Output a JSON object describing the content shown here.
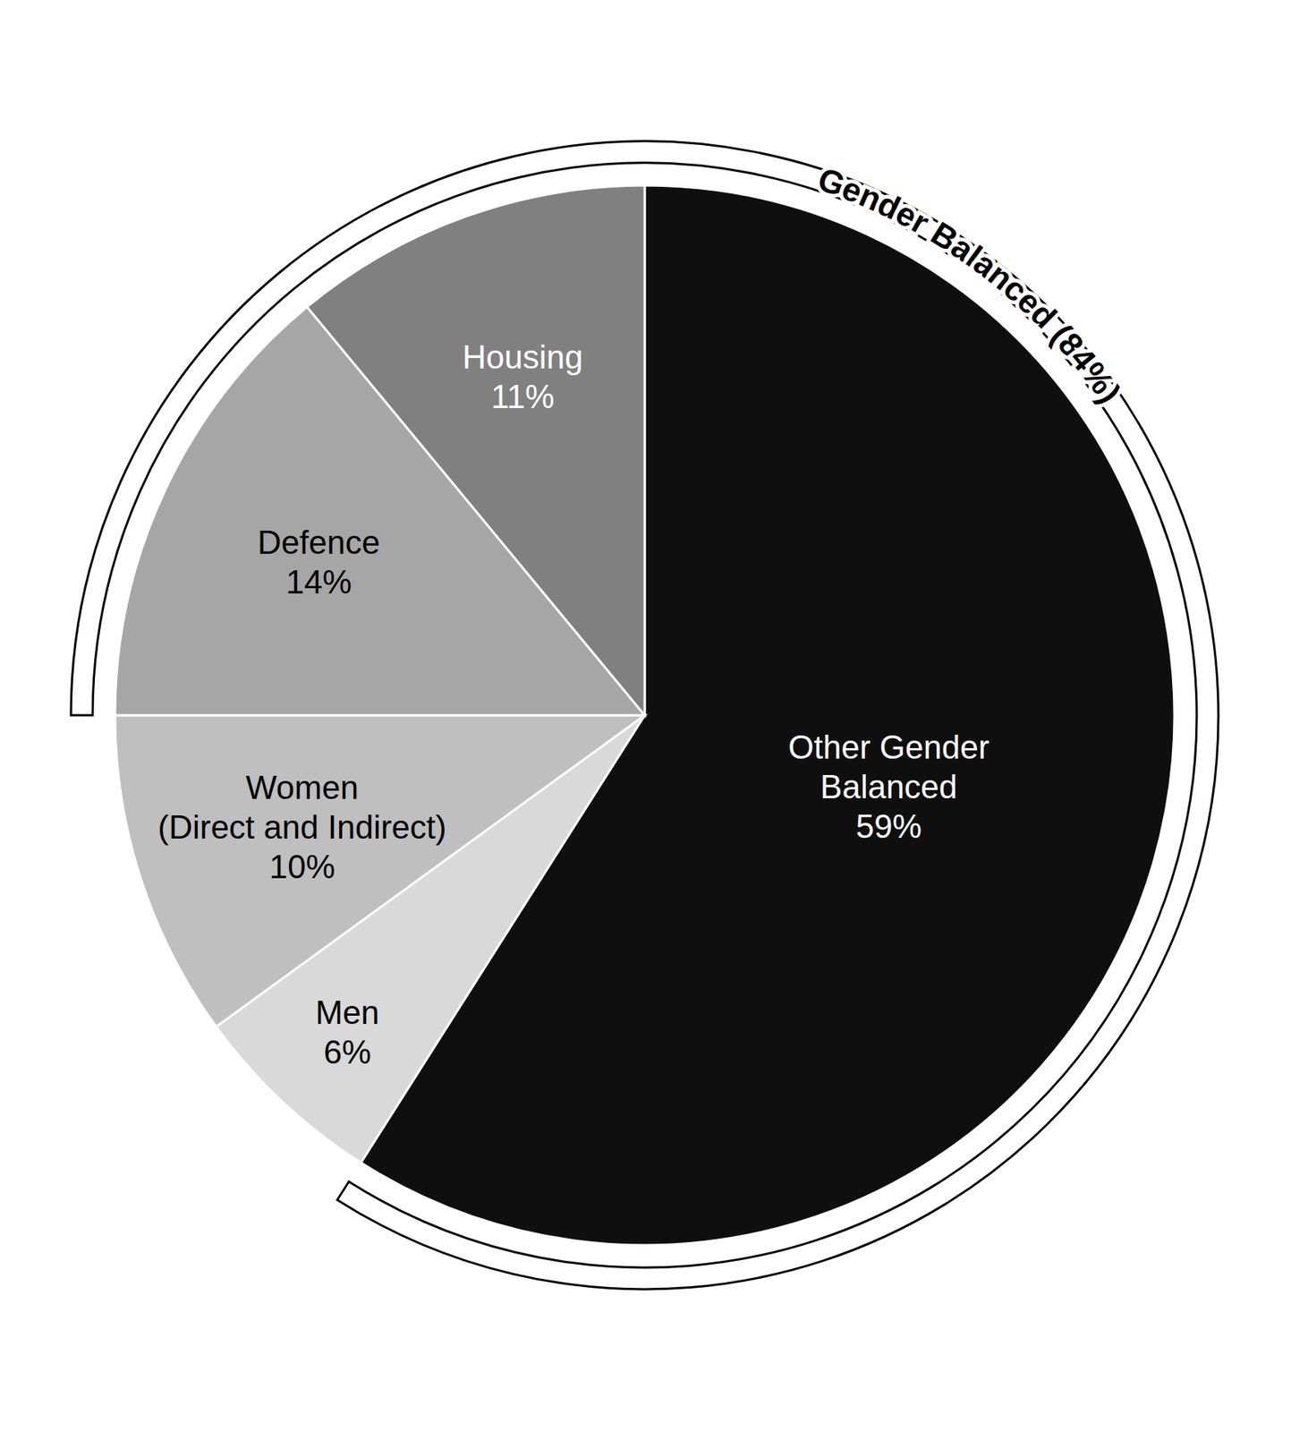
{
  "chart_data": {
    "type": "pie",
    "categories": [
      "Other Gender\nBalanced",
      "Men",
      "Women\n(Direct and Indirect)",
      "Defence",
      "Housing"
    ],
    "values": [
      59,
      6,
      10,
      14,
      11
    ],
    "value_labels": [
      "59%",
      "6%",
      "10%",
      "14%",
      "11%"
    ],
    "colors": [
      "#0f0f0f",
      "#d9d9d9",
      "#bfbfbf",
      "#a6a6a6",
      "#808080"
    ],
    "data_labels": true,
    "annotations": [
      {
        "text": "Gender Balanced (84%)",
        "value": 84
      }
    ]
  }
}
